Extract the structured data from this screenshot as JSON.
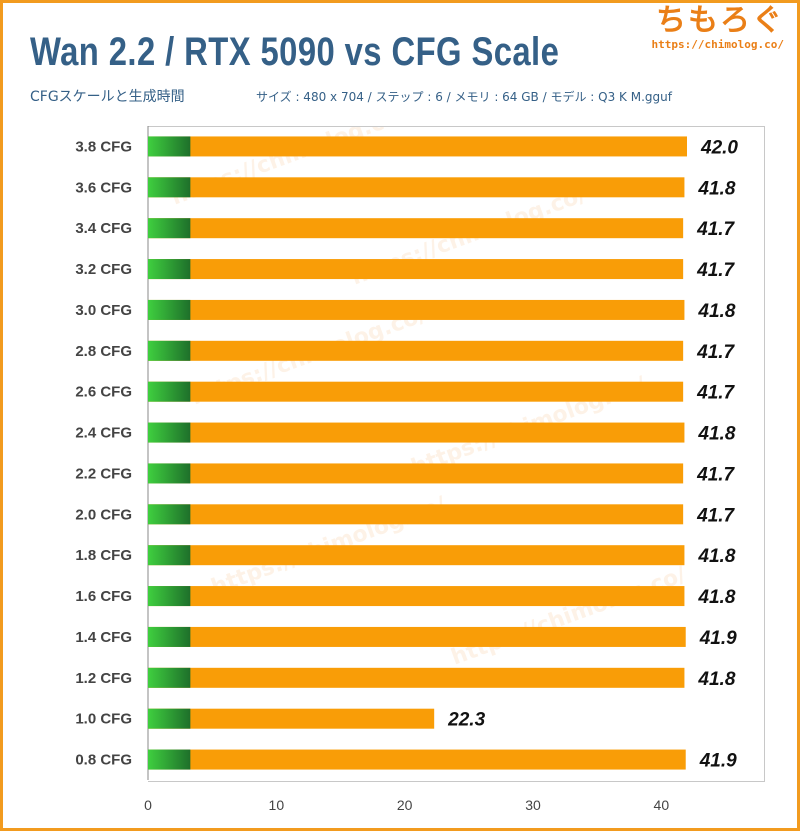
{
  "header": {
    "title": "Wan 2.2 / RTX 5090 vs CFG Scale",
    "subtitle": "CFGスケールと生成時間",
    "params": "サイズ : 480 x 704 / ステップ : 6 / メモリ : 64 GB / モデル : Q3 K M.gguf",
    "logo_text": "ちもろぐ",
    "logo_url": "https://chimolog.co/",
    "watermark": "https://chimolog.co/"
  },
  "colors": {
    "frame": "#f29b1f",
    "title": "#356087",
    "bar_orange": "#f99d07",
    "bar_green_light": "#3fcf3f",
    "bar_green_dark": "#1e6f2a"
  },
  "chart_data": {
    "type": "bar",
    "orientation": "horizontal",
    "title": "Wan 2.2 / RTX 5090 vs CFG Scale",
    "subtitle": "CFGスケールと生成時間",
    "categories": [
      "3.8 CFG",
      "3.6 CFG",
      "3.4 CFG",
      "3.2 CFG",
      "3.0 CFG",
      "2.8 CFG",
      "2.6 CFG",
      "2.4 CFG",
      "2.2 CFG",
      "2.0 CFG",
      "1.8 CFG",
      "1.6 CFG",
      "1.4 CFG",
      "1.2 CFG",
      "1.0 CFG",
      "0.8 CFG"
    ],
    "values": [
      42.0,
      41.8,
      41.7,
      41.7,
      41.8,
      41.7,
      41.7,
      41.8,
      41.7,
      41.7,
      41.8,
      41.8,
      41.9,
      41.8,
      22.3,
      41.9
    ],
    "value_labels": [
      "42.0",
      "41.8",
      "41.7",
      "41.7",
      "41.8",
      "41.7",
      "41.7",
      "41.8",
      "41.7",
      "41.7",
      "41.8",
      "41.8",
      "41.9",
      "41.8",
      "22.3",
      "41.9"
    ],
    "green_segment": 3.3,
    "xlim": [
      0,
      48
    ],
    "xticks": [
      0,
      10,
      20,
      30,
      40
    ],
    "xtick_labels": [
      "0",
      "10",
      "20",
      "30",
      "40"
    ],
    "xlabel": "",
    "ylabel": "",
    "grid": false,
    "legend": "none"
  }
}
